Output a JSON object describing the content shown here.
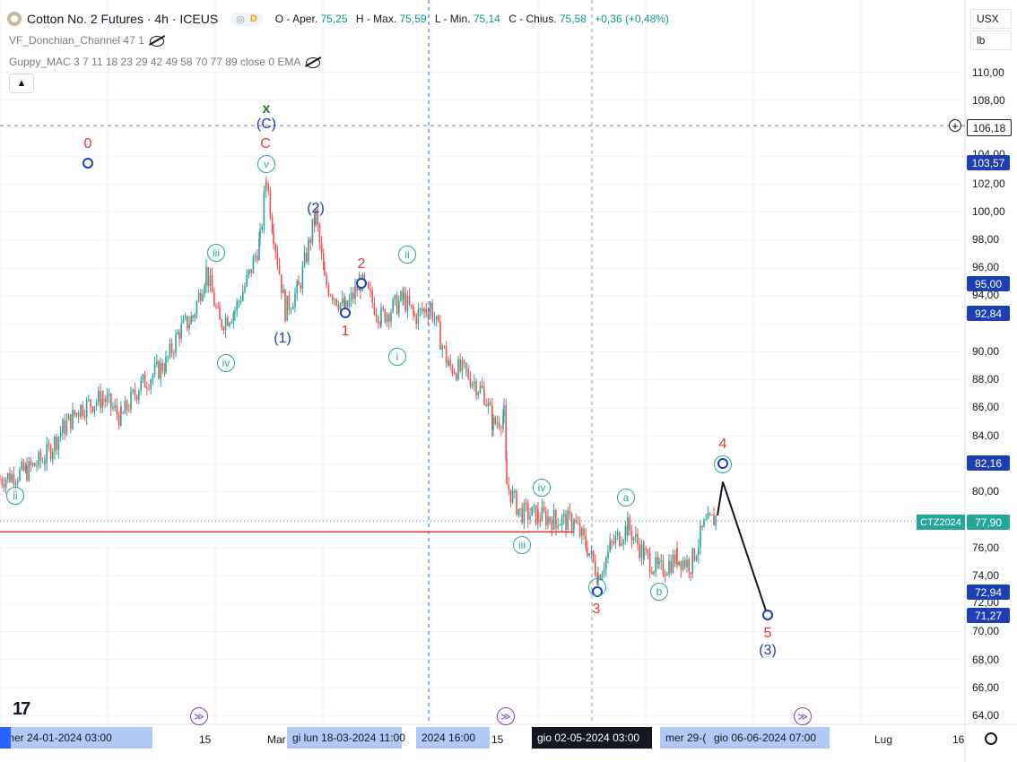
{
  "header": {
    "symbol": "Cotton No. 2 Futures · 4h · ICEUS",
    "dot": "◎",
    "delayed_badge": "D",
    "ohlc": [
      {
        "label": "O - Aper.",
        "value": "75,25"
      },
      {
        "label": "H - Max.",
        "value": "75,59"
      },
      {
        "label": "L - Min.",
        "value": "75,14"
      },
      {
        "label": "C - Chius.",
        "value": "75,58"
      },
      {
        "label": "",
        "value": "+0,36 (+0,48%)"
      }
    ]
  },
  "indicators": [
    {
      "name": "VF_Donchian_Channel 47 1"
    },
    {
      "name": "Guppy_MAC 3 7 11 18 23 29 42 49 58 70 77 89 close 0 EMA"
    }
  ],
  "collapse_icon": "chevron-up-icon",
  "currency": "USX",
  "unit": "lb",
  "price_axis": [
    "110,00",
    "108,00",
    "104,00",
    "102,00",
    "100,00",
    "98,00",
    "96,00",
    "94,00",
    "90,00",
    "88,00",
    "86,00",
    "84,00",
    "80,00",
    "76,00",
    "74,00",
    "72,00",
    "70,00",
    "68,00",
    "66,00",
    "64,00"
  ],
  "price_badges": [
    {
      "value": "106,18",
      "color": "#131722",
      "key": "crosshair"
    },
    {
      "value": "103,57",
      "color": "#1e3fb4"
    },
    {
      "value": "95,00",
      "color": "#1e3fb4"
    },
    {
      "value": "92,84",
      "color": "#1e3fb4"
    },
    {
      "value": "82,16",
      "color": "#1e3fb4"
    },
    {
      "value": "77,90",
      "color": "#26a69a"
    },
    {
      "value": "72,94",
      "color": "#1e3fb4"
    },
    {
      "value": "71,27",
      "color": "#1e3fb4"
    }
  ],
  "contract_label": "CTZ2024",
  "time_axis": {
    "labels": [
      {
        "text": "15"
      },
      {
        "text": "Mar"
      },
      {
        "text": "15"
      },
      {
        "text": "Lug"
      },
      {
        "text": "16"
      }
    ],
    "badges": [
      {
        "text": "mer 24-01-2024   03:00",
        "style": "blue"
      },
      {
        "text": "gi   lun 18-03-2024   11:00",
        "style": "blue"
      },
      {
        "text": "2024   16:00",
        "style": "blue"
      },
      {
        "text": "gio 02-05-2024   03:00",
        "style": "dark"
      },
      {
        "text": "mer 29-(",
        "style": "blue"
      },
      {
        "text": "gio 06-06-2024   07:00",
        "style": "blue"
      }
    ]
  },
  "wave_labels": {
    "red": [
      "0",
      "C",
      "2",
      "1",
      "3",
      "4",
      "5"
    ],
    "blue": [
      "(C)",
      "(2)",
      "(1)",
      "(3)"
    ],
    "green": [
      "x"
    ],
    "circled": [
      "v",
      "iii",
      "iv",
      "ii",
      "i",
      "ii",
      "iv",
      "iii",
      "a",
      "b"
    ]
  },
  "colors": {
    "up": "#26a69a",
    "down": "#ef5350",
    "wave_red": "#e53935",
    "wave_blue": "#1e3fb4",
    "wave_green": "#26a69a",
    "hline": "#e53935"
  },
  "icons": [
    "eye-hidden-icon",
    "plus-circle-icon",
    "jump-to-realtime-icon",
    "settings-icon",
    "tradingview-logo"
  ],
  "chart_data": {
    "type": "candlestick",
    "price_range": [
      63,
      112
    ],
    "price_path": [
      {
        "x": 0,
        "p": 80.9
      },
      {
        "x": 30,
        "p": 81.5
      },
      {
        "x": 50,
        "p": 82.4
      },
      {
        "x": 70,
        "p": 84.5
      },
      {
        "x": 90,
        "p": 86.0
      },
      {
        "x": 115,
        "p": 86.7
      },
      {
        "x": 135,
        "p": 85.3
      },
      {
        "x": 155,
        "p": 87.5
      },
      {
        "x": 185,
        "p": 89.2
      },
      {
        "x": 200,
        "p": 91.5
      },
      {
        "x": 215,
        "p": 92.5
      },
      {
        "x": 230,
        "p": 95.8
      },
      {
        "x": 245,
        "p": 92.0
      },
      {
        "x": 262,
        "p": 93.0
      },
      {
        "x": 278,
        "p": 95.5
      },
      {
        "x": 290,
        "p": 98.0
      },
      {
        "x": 297,
        "p": 102.5
      },
      {
        "x": 305,
        "p": 98.5
      },
      {
        "x": 318,
        "p": 93.0
      },
      {
        "x": 333,
        "p": 94.5
      },
      {
        "x": 352,
        "p": 99.8
      },
      {
        "x": 362,
        "p": 95.0
      },
      {
        "x": 385,
        "p": 93.0
      },
      {
        "x": 402,
        "p": 95.0
      },
      {
        "x": 425,
        "p": 92.5
      },
      {
        "x": 450,
        "p": 93.8
      },
      {
        "x": 462,
        "p": 92.5
      },
      {
        "x": 480,
        "p": 93.3
      },
      {
        "x": 500,
        "p": 89.0
      },
      {
        "x": 520,
        "p": 88.5
      },
      {
        "x": 540,
        "p": 87.0
      },
      {
        "x": 550,
        "p": 84.8
      },
      {
        "x": 562,
        "p": 85.5
      },
      {
        "x": 565,
        "p": 80.5
      },
      {
        "x": 580,
        "p": 78.5
      },
      {
        "x": 600,
        "p": 78.3
      },
      {
        "x": 620,
        "p": 78.0
      },
      {
        "x": 640,
        "p": 77.8
      },
      {
        "x": 655,
        "p": 76.0
      },
      {
        "x": 667,
        "p": 74.0
      },
      {
        "x": 682,
        "p": 76.2
      },
      {
        "x": 700,
        "p": 77.5
      },
      {
        "x": 718,
        "p": 75.5
      },
      {
        "x": 735,
        "p": 74.3
      },
      {
        "x": 755,
        "p": 75.3
      },
      {
        "x": 770,
        "p": 74.8
      },
      {
        "x": 785,
        "p": 77.5
      },
      {
        "x": 800,
        "p": 78.2
      }
    ],
    "projection": [
      {
        "x": 800,
        "p": 78.3
      },
      {
        "x": 806,
        "p": 80.7
      },
      {
        "x": 855,
        "p": 71.3
      }
    ],
    "horizontal_line": 77.9,
    "crosshair_price": 106.18
  }
}
